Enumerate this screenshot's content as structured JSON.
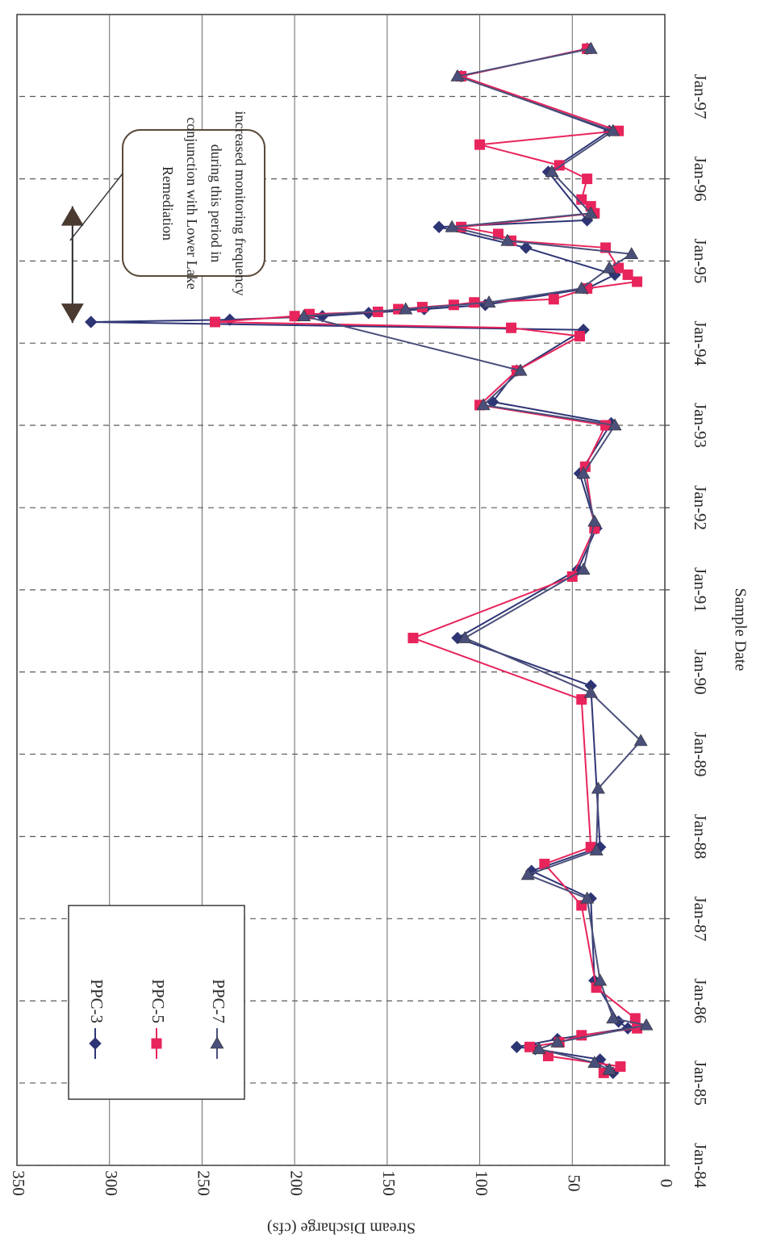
{
  "chart_data": {
    "type": "line",
    "title": "",
    "xlabel": "Sample Date",
    "ylabel": "Stream Discharge (cfs)",
    "x_type": "date",
    "xlim": [
      "1984-01-01",
      "1997-12-31"
    ],
    "ylim": [
      0,
      350
    ],
    "x_ticks": [
      "Jan-84",
      "Jan-85",
      "Jan-86",
      "Jan-87",
      "Jan-88",
      "Jan-89",
      "Jan-90",
      "Jan-91",
      "Jan-92",
      "Jan-93",
      "Jan-94",
      "Jan-95",
      "Jan-96",
      "Jan-97"
    ],
    "x_tick_dates": [
      "1984-01-01",
      "1985-01-01",
      "1986-01-01",
      "1987-01-01",
      "1988-01-01",
      "1989-01-01",
      "1990-01-01",
      "1991-01-01",
      "1992-01-01",
      "1993-01-01",
      "1994-01-01",
      "1995-01-01",
      "1996-01-01",
      "1997-01-01"
    ],
    "y_ticks": [
      0,
      50,
      100,
      150,
      200,
      250,
      300,
      350
    ],
    "grid": true,
    "legend_position": "lower-right",
    "orientation": "rotated-180",
    "annotation": {
      "lines": [
        "increased monitoring frequency",
        "during this period in",
        "conjunction with Lower Lake",
        "Remediation"
      ],
      "span": [
        "1994-04-01",
        "1995-09-01"
      ]
    },
    "series": [
      {
        "name": "PPC-3",
        "color": "#2e3575",
        "marker": "diamond",
        "points": [
          [
            "1985-02-15",
            28
          ],
          [
            "1985-04-15",
            35
          ],
          [
            "1985-06-01",
            70
          ],
          [
            "1985-06-10",
            80
          ],
          [
            "1985-07-15",
            58
          ],
          [
            "1985-09-01",
            20
          ],
          [
            "1985-10-01",
            25
          ],
          [
            "1986-04-01",
            38
          ],
          [
            "1987-04-01",
            40
          ],
          [
            "1987-08-01",
            72
          ],
          [
            "1987-11-15",
            35
          ],
          [
            "1989-11-01",
            40
          ],
          [
            "1990-06-01",
            112
          ],
          [
            "1991-04-01",
            47
          ],
          [
            "1991-10-01",
            37
          ],
          [
            "1992-06-01",
            46
          ],
          [
            "1993-01-10",
            29
          ],
          [
            "1993-04-15",
            93
          ],
          [
            "1993-09-01",
            80
          ],
          [
            "1994-03-01",
            44
          ],
          [
            "1994-04-05",
            310
          ],
          [
            "1994-04-15",
            235
          ],
          [
            "1994-05-01",
            185
          ],
          [
            "1994-05-15",
            160
          ],
          [
            "1994-06-01",
            130
          ],
          [
            "1994-06-20",
            97
          ],
          [
            "1994-09-01",
            42
          ],
          [
            "1994-11-01",
            27
          ],
          [
            "1995-03-01",
            75
          ],
          [
            "1995-06-01",
            122
          ],
          [
            "1995-07-01",
            42
          ],
          [
            "1996-02-01",
            63
          ],
          [
            "1996-08-01",
            30
          ],
          [
            "1997-04-01",
            110
          ],
          [
            "1997-08-01",
            42
          ]
        ]
      },
      {
        "name": "PPC-5",
        "color": "#e8245c",
        "marker": "square",
        "points": [
          [
            "1985-02-15",
            33
          ],
          [
            "1985-03-15",
            24
          ],
          [
            "1985-05-01",
            63
          ],
          [
            "1985-06-10",
            73
          ],
          [
            "1985-07-01",
            57
          ],
          [
            "1985-08-01",
            45
          ],
          [
            "1985-09-01",
            15
          ],
          [
            "1985-10-15",
            16
          ],
          [
            "1986-03-01",
            37
          ],
          [
            "1987-03-01",
            45
          ],
          [
            "1987-09-01",
            65
          ],
          [
            "1987-11-15",
            40
          ],
          [
            "1989-09-01",
            45
          ],
          [
            "1990-06-01",
            136
          ],
          [
            "1991-03-01",
            50
          ],
          [
            "1991-10-01",
            38
          ],
          [
            "1992-07-01",
            43
          ],
          [
            "1993-01-01",
            32
          ],
          [
            "1993-04-01",
            100
          ],
          [
            "1993-09-01",
            80
          ],
          [
            "1994-02-01",
            46
          ],
          [
            "1994-03-10",
            83
          ],
          [
            "1994-04-05",
            243
          ],
          [
            "1994-05-01",
            200
          ],
          [
            "1994-05-10",
            192
          ],
          [
            "1994-05-20",
            155
          ],
          [
            "1994-06-01",
            144
          ],
          [
            "1994-06-10",
            131
          ],
          [
            "1994-06-20",
            114
          ],
          [
            "1994-07-01",
            103
          ],
          [
            "1994-07-15",
            60
          ],
          [
            "1994-09-01",
            42
          ],
          [
            "1994-10-01",
            15
          ],
          [
            "1994-11-01",
            20
          ],
          [
            "1994-12-01",
            25
          ],
          [
            "1995-03-01",
            32
          ],
          [
            "1995-04-01",
            83
          ],
          [
            "1995-05-01",
            90
          ],
          [
            "1995-06-01",
            110
          ],
          [
            "1995-08-01",
            38
          ],
          [
            "1995-09-01",
            40
          ],
          [
            "1995-10-01",
            45
          ],
          [
            "1996-01-01",
            42
          ],
          [
            "1996-03-01",
            57
          ],
          [
            "1996-06-01",
            100
          ],
          [
            "1996-08-01",
            25
          ],
          [
            "1997-04-01",
            110
          ],
          [
            "1997-08-01",
            42
          ]
        ]
      },
      {
        "name": "PPC-7",
        "color": "#4a4f7a",
        "marker": "triangle",
        "points": [
          [
            "1985-03-01",
            30
          ],
          [
            "1985-04-01",
            38
          ],
          [
            "1985-06-01",
            68
          ],
          [
            "1985-07-01",
            58
          ],
          [
            "1985-09-15",
            10
          ],
          [
            "1985-10-15",
            28
          ],
          [
            "1986-04-01",
            35
          ],
          [
            "1987-04-01",
            42
          ],
          [
            "1987-07-15",
            74
          ],
          [
            "1987-11-01",
            37
          ],
          [
            "1988-08-01",
            36
          ],
          [
            "1989-03-01",
            13
          ],
          [
            "1989-10-01",
            40
          ],
          [
            "1990-06-01",
            108
          ],
          [
            "1991-04-01",
            44
          ],
          [
            "1991-11-01",
            38
          ],
          [
            "1992-06-01",
            44
          ],
          [
            "1993-01-01",
            27
          ],
          [
            "1993-04-01",
            98
          ],
          [
            "1993-09-01",
            78
          ],
          [
            "1994-05-01",
            195
          ],
          [
            "1994-06-01",
            140
          ],
          [
            "1994-07-01",
            95
          ],
          [
            "1994-09-01",
            45
          ],
          [
            "1994-12-01",
            30
          ],
          [
            "1995-02-01",
            18
          ],
          [
            "1995-04-01",
            85
          ],
          [
            "1995-06-01",
            115
          ],
          [
            "1995-08-01",
            40
          ],
          [
            "1996-02-01",
            61
          ],
          [
            "1996-08-01",
            28
          ],
          [
            "1997-04-01",
            112
          ],
          [
            "1997-08-01",
            40
          ]
        ]
      }
    ]
  }
}
